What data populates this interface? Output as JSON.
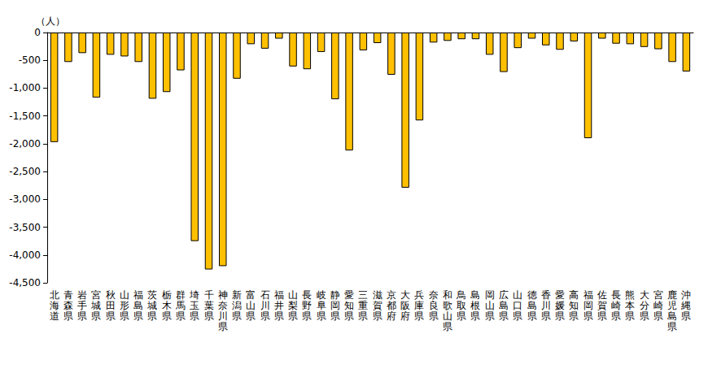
{
  "chart_data": {
    "type": "bar",
    "y_label": "（人）",
    "categories": [
      "北海道",
      "青森県",
      "岩手県",
      "宮城県",
      "秋田県",
      "山形県",
      "福島県",
      "茨城県",
      "栃木県",
      "群馬県",
      "埼玉県",
      "千葉県",
      "神奈川県",
      "新潟県",
      "富山県",
      "石川県",
      "福井県",
      "山梨県",
      "長野県",
      "岐阜県",
      "静岡県",
      "愛知県",
      "三重県",
      "滋賀県",
      "京都府",
      "大阪府",
      "兵庫県",
      "奈良県",
      "和歌山県",
      "鳥取県",
      "島根県",
      "岡山県",
      "広島県",
      "山口県",
      "徳島県",
      "香川県",
      "愛媛県",
      "高知県",
      "福岡県",
      "佐賀県",
      "長崎県",
      "熊本県",
      "大分県",
      "宮崎県",
      "鹿児島県",
      "沖縄県"
    ],
    "values": [
      -1970,
      -530,
      -370,
      -1170,
      -400,
      -430,
      -530,
      -1190,
      -1070,
      -680,
      -3750,
      -4260,
      -4200,
      -830,
      -210,
      -290,
      -110,
      -610,
      -660,
      -350,
      -1200,
      -2120,
      -320,
      -190,
      -760,
      -2790,
      -1580,
      -180,
      -150,
      -120,
      -120,
      -400,
      -710,
      -280,
      -110,
      -230,
      -310,
      -160,
      -1900,
      -110,
      -200,
      -210,
      -260,
      -300,
      -530,
      -700
    ],
    "color": "#ffc000",
    "ylim": [
      -4500,
      0
    ],
    "yticks": [
      {
        "value": -4500,
        "label": "-4,500"
      },
      {
        "value": -4000,
        "label": "-4,000"
      },
      {
        "value": -3500,
        "label": "-3,500"
      },
      {
        "value": -3000,
        "label": "-3,000"
      },
      {
        "value": -2500,
        "label": "-2,500"
      },
      {
        "value": -2000,
        "label": "-2,000"
      },
      {
        "value": -1500,
        "label": "-1,500"
      },
      {
        "value": -1000,
        "label": "-1,000"
      },
      {
        "value": -500,
        "label": "-500"
      },
      0
    ],
    "grid": false
  }
}
